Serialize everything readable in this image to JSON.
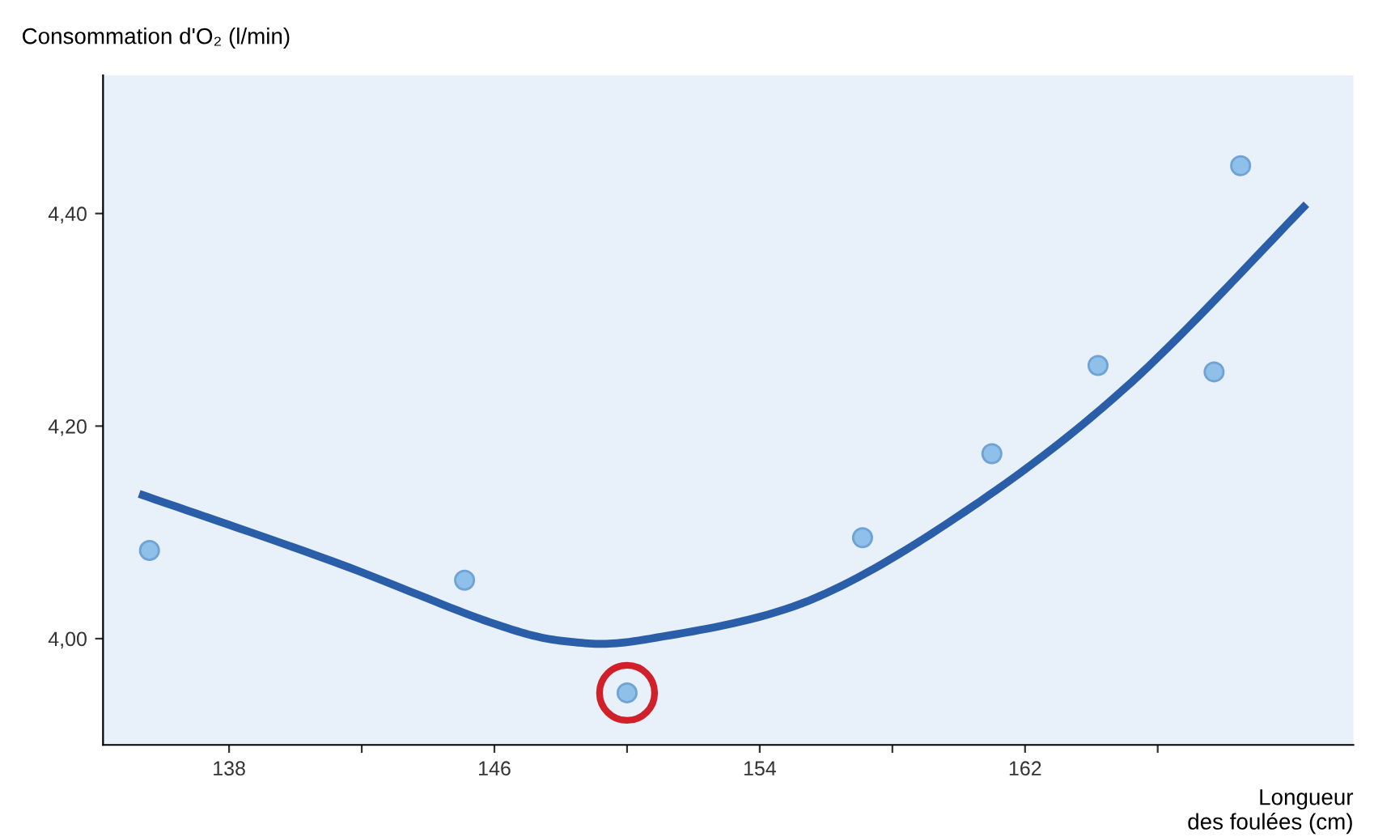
{
  "chart_data": {
    "type": "scatter",
    "xlabel": "Longueur\ndes foulées (cm)",
    "ylabel": "Consommation d'O₂ (l/min)",
    "xlim": [
      134.2,
      171.9
    ],
    "ylim": [
      3.9,
      4.53
    ],
    "xticks": [
      {
        "value": 138,
        "label": "138"
      },
      {
        "value": 142,
        "label": null
      },
      {
        "value": 146,
        "label": "146"
      },
      {
        "value": 150,
        "label": null
      },
      {
        "value": 154,
        "label": "154"
      },
      {
        "value": 158,
        "label": null
      },
      {
        "value": 162,
        "label": "162"
      },
      {
        "value": 166,
        "label": null
      }
    ],
    "yticks": [
      {
        "value": 4.0,
        "label": "4,00"
      },
      {
        "value": 4.2,
        "label": "4,20"
      },
      {
        "value": 4.4,
        "label": "4,40"
      }
    ],
    "grid": false,
    "legend": false,
    "series": [
      {
        "color": "#8fc0ea",
        "marker": "circle",
        "x": [
          135.6,
          145.1,
          150.0,
          157.1,
          161.0,
          164.2,
          167.7,
          168.5
        ],
        "values": [
          4.083,
          4.055,
          3.949,
          4.095,
          4.174,
          4.257,
          4.251,
          4.445
        ]
      },
      {
        "type": "line",
        "color": "#2a5ea8",
        "marker": "none",
        "line_style": "solid",
        "x": [
          135.4,
          141.1,
          145.9,
          148.3,
          150.7,
          155.5,
          160.4,
          165.2,
          170.4
        ],
        "values": [
          4.135,
          4.073,
          4.015,
          3.997,
          4.0,
          4.036,
          4.124,
          4.241,
          4.406
        ]
      }
    ]
  }
}
